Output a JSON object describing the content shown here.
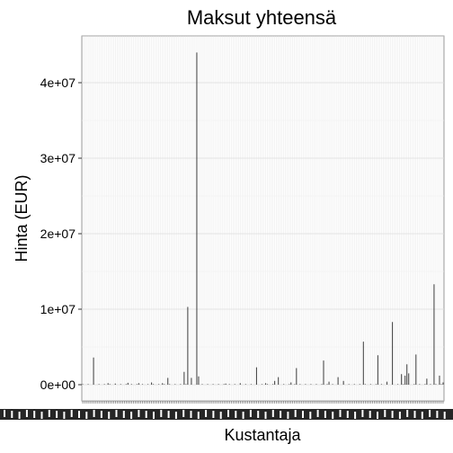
{
  "chart_data": {
    "type": "bar",
    "title": "Maksut yhteensä",
    "xlabel": "Kustantaja",
    "ylabel": "Hinta (EUR)",
    "ylim": [
      0,
      46000000
    ],
    "yticks": [
      {
        "value": 0,
        "label": "0e+00"
      },
      {
        "value": 10000000,
        "label": "1e+07"
      },
      {
        "value": 20000000,
        "label": "2e+07"
      },
      {
        "value": 30000000,
        "label": "3e+07"
      },
      {
        "value": 40000000,
        "label": "4e+07"
      }
    ],
    "grid": true,
    "legend": "none",
    "category_count": 200,
    "spikes": [
      {
        "index": 6,
        "value": 3600000
      },
      {
        "index": 14,
        "value": 200000
      },
      {
        "index": 18,
        "value": 150000
      },
      {
        "index": 25,
        "value": 250000
      },
      {
        "index": 31,
        "value": 200000
      },
      {
        "index": 38,
        "value": 300000
      },
      {
        "index": 44,
        "value": 200000
      },
      {
        "index": 47,
        "value": 900000
      },
      {
        "index": 56,
        "value": 1700000
      },
      {
        "index": 58,
        "value": 10300000
      },
      {
        "index": 60,
        "value": 900000
      },
      {
        "index": 63,
        "value": 44000000
      },
      {
        "index": 64,
        "value": 1100000
      },
      {
        "index": 79,
        "value": 150000
      },
      {
        "index": 87,
        "value": 200000
      },
      {
        "index": 96,
        "value": 2300000
      },
      {
        "index": 101,
        "value": 200000
      },
      {
        "index": 106,
        "value": 500000
      },
      {
        "index": 108,
        "value": 1000000
      },
      {
        "index": 115,
        "value": 300000
      },
      {
        "index": 118,
        "value": 2200000
      },
      {
        "index": 133,
        "value": 3200000
      },
      {
        "index": 136,
        "value": 400000
      },
      {
        "index": 141,
        "value": 1000000
      },
      {
        "index": 144,
        "value": 500000
      },
      {
        "index": 155,
        "value": 5700000
      },
      {
        "index": 163,
        "value": 3900000
      },
      {
        "index": 168,
        "value": 400000
      },
      {
        "index": 171,
        "value": 8300000
      },
      {
        "index": 176,
        "value": 1400000
      },
      {
        "index": 178,
        "value": 1200000
      },
      {
        "index": 179,
        "value": 2700000
      },
      {
        "index": 180,
        "value": 1500000
      },
      {
        "index": 184,
        "value": 4000000
      },
      {
        "index": 190,
        "value": 800000
      },
      {
        "index": 194,
        "value": 13300000
      },
      {
        "index": 197,
        "value": 1200000
      },
      {
        "index": 199,
        "value": 300000
      }
    ]
  }
}
